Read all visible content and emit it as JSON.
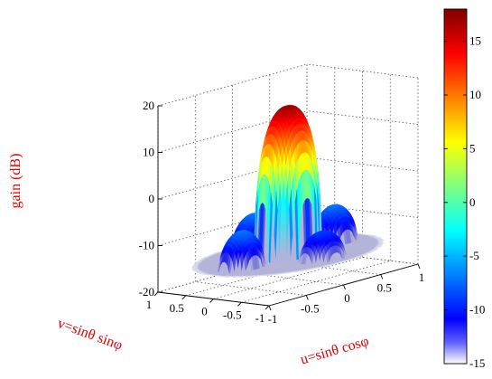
{
  "chart_data": {
    "type": "surface",
    "title": "",
    "xlabel": "u=sinθ cosφ",
    "ylabel": "v=sinθ sinφ",
    "zlabel": "gain (dB)",
    "x_ticks": [
      "-1",
      "-0.5",
      "0",
      "0.5",
      "1"
    ],
    "y_ticks": [
      "-1",
      "-0.5",
      "0",
      "0.5",
      "1"
    ],
    "z_ticks": [
      "-20",
      "-10",
      "0",
      "10",
      "20"
    ],
    "xlim": [
      -1,
      1
    ],
    "ylim": [
      -1,
      1
    ],
    "zlim": [
      -20,
      20
    ],
    "grid": true,
    "colormap": "jet",
    "colorbar": {
      "range": [
        -15,
        18
      ],
      "ticks": [
        "15",
        "10",
        "5",
        "0",
        "-5",
        "-10",
        "-15"
      ]
    },
    "main_lobe": {
      "peak_u": 0,
      "peak_v": 0,
      "peak_gain_db": 17
    },
    "side_lobes": [
      {
        "u": -0.62,
        "v": 0,
        "gain_db": -7
      },
      {
        "u": 0.62,
        "v": 0,
        "gain_db": -7
      },
      {
        "u": 0,
        "v": 0.62,
        "gain_db": -7
      },
      {
        "u": 0,
        "v": -0.62,
        "gain_db": -9
      }
    ],
    "floor_gain_db": -15
  },
  "colors": {
    "axis_label": "#e00000",
    "jet": [
      "#00008f",
      "#0000ff",
      "#00ffff",
      "#ffff00",
      "#ff0000",
      "#800000"
    ]
  }
}
